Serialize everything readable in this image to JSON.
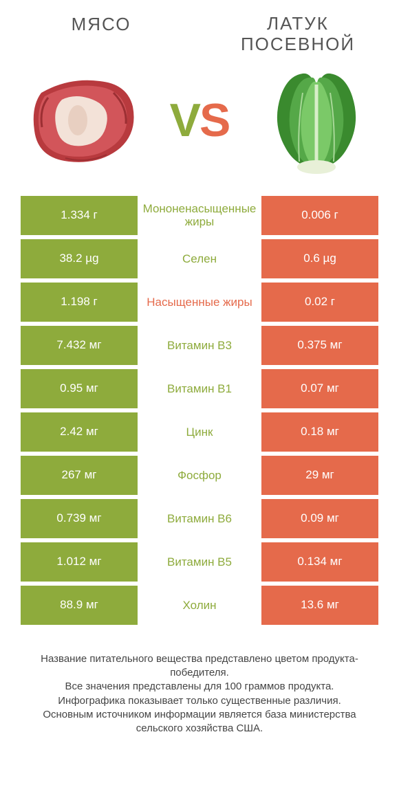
{
  "colors": {
    "left": "#8eab3c",
    "right": "#e56a4b",
    "mid_left_text": "#8eab3c",
    "mid_right_text": "#e56a4b"
  },
  "header": {
    "left_title": "МЯСО",
    "right_title_line1": "ЛАТУК",
    "right_title_line2": "ПОСЕВНОЙ"
  },
  "vs": {
    "v": "V",
    "s": "S"
  },
  "rows": [
    {
      "left": "1.334 г",
      "mid": "Мононенасыщенные жиры",
      "right": "0.006 г",
      "winner": "left"
    },
    {
      "left": "38.2 µg",
      "mid": "Селен",
      "right": "0.6 µg",
      "winner": "left"
    },
    {
      "left": "1.198 г",
      "mid": "Насыщенные жиры",
      "right": "0.02 г",
      "winner": "right"
    },
    {
      "left": "7.432 мг",
      "mid": "Витамин B3",
      "right": "0.375 мг",
      "winner": "left"
    },
    {
      "left": "0.95 мг",
      "mid": "Витамин B1",
      "right": "0.07 мг",
      "winner": "left"
    },
    {
      "left": "2.42 мг",
      "mid": "Цинк",
      "right": "0.18 мг",
      "winner": "left"
    },
    {
      "left": "267 мг",
      "mid": "Фосфор",
      "right": "29 мг",
      "winner": "left"
    },
    {
      "left": "0.739 мг",
      "mid": "Витамин B6",
      "right": "0.09 мг",
      "winner": "left"
    },
    {
      "left": "1.012 мг",
      "mid": "Витамин B5",
      "right": "0.134 мг",
      "winner": "left"
    },
    {
      "left": "88.9 мг",
      "mid": "Холин",
      "right": "13.6 мг",
      "winner": "left"
    }
  ],
  "footer": {
    "l1": "Название питательного вещества представлено цветом продукта-победителя.",
    "l2": "Все значения представлены для 100 граммов продукта.",
    "l3": "Инфографика показывает только существенные различия.",
    "l4": "Основным источником информации является база министерства сельского хозяйства США."
  }
}
